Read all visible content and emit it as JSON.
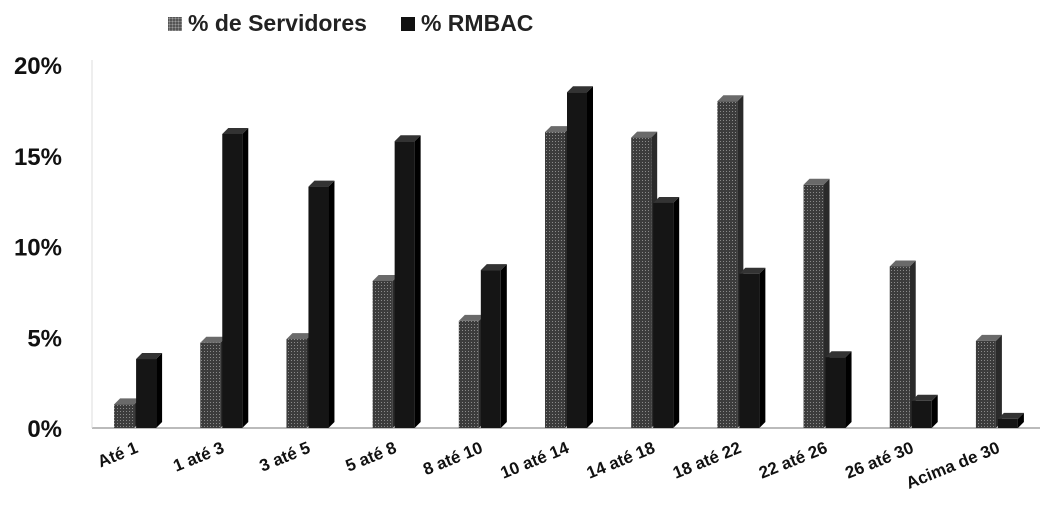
{
  "chart_data": {
    "type": "bar",
    "categories": [
      "Até 1",
      "1 até 3",
      "3 até 5",
      "5 até 8",
      "8 até 10",
      "10 até 14",
      "14 até 18",
      "18 até 22",
      "22 até 26",
      "26 até 30",
      "Acima de 30"
    ],
    "series": [
      {
        "name": "% de Servidores",
        "values": [
          1.3,
          4.7,
          4.9,
          8.1,
          5.9,
          16.3,
          16.0,
          18.0,
          13.4,
          8.9,
          4.8
        ],
        "color": "#4a4a4a"
      },
      {
        "name": "% RMBAC",
        "values": [
          3.8,
          16.2,
          13.3,
          15.8,
          8.7,
          18.5,
          12.4,
          8.5,
          3.9,
          1.5,
          0.5
        ],
        "color": "#151515"
      }
    ],
    "ylim": [
      0,
      20
    ],
    "yticks": [
      "0%",
      "5%",
      "10%",
      "15%",
      "20%"
    ],
    "legend": "top-left",
    "grid": false,
    "title": "",
    "xlabel": "",
    "ylabel": ""
  }
}
